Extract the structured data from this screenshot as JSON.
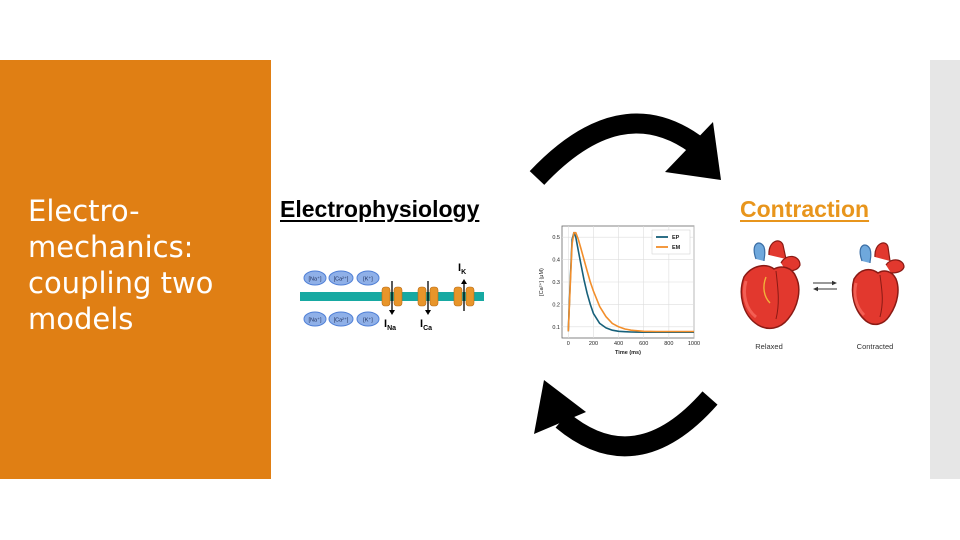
{
  "title": {
    "lines": [
      "Electro-",
      "mechanics:",
      "coupling two",
      "models"
    ]
  },
  "headings": {
    "electrophysiology": "Electrophysiology",
    "contraction": "Contraction"
  },
  "membrane": {
    "ion_top": [
      "[Na⁺]",
      "[Ca²⁺]",
      "[K⁺]"
    ],
    "ion_bottom": [
      "[Na⁺]",
      "[Ca²⁺]",
      "[K⁺]"
    ],
    "currents": {
      "na_main": "I",
      "na_sub": "Na",
      "ca_main": "I",
      "ca_sub": "Ca",
      "k_main": "I",
      "k_sub": "K"
    },
    "colors": {
      "membrane": "#17a9a2",
      "channel": "#e8952a",
      "ion": "#4f7fd6"
    }
  },
  "hearts": {
    "relaxed_label": "Relaxed",
    "contracted_label": "Contracted"
  },
  "colors": {
    "accent": "#e07f14",
    "heading_orange": "#e8951c",
    "arrow": "#000000"
  },
  "chart_data": {
    "type": "line",
    "title": "",
    "xlabel": "Time (ms)",
    "ylabel": "[Ca²⁺] (μM)",
    "xlim": [
      -50,
      1000
    ],
    "ylim": [
      0.05,
      0.55
    ],
    "xticks": [
      0,
      200,
      400,
      600,
      800,
      1000
    ],
    "yticks": [
      0.1,
      0.2,
      0.3,
      0.4,
      0.5
    ],
    "grid": true,
    "legend": "top-right",
    "series": [
      {
        "name": "EP",
        "color": "#17607a",
        "x": [
          0,
          15,
          30,
          45,
          60,
          80,
          100,
          125,
          150,
          175,
          200,
          250,
          300,
          350,
          400,
          450,
          500,
          600,
          700,
          800,
          900,
          1000
        ],
        "y": [
          0.08,
          0.3,
          0.49,
          0.52,
          0.5,
          0.44,
          0.38,
          0.31,
          0.25,
          0.2,
          0.16,
          0.115,
          0.095,
          0.085,
          0.08,
          0.078,
          0.077,
          0.076,
          0.076,
          0.076,
          0.076,
          0.076
        ]
      },
      {
        "name": "EM",
        "color": "#f28e2b",
        "x": [
          0,
          15,
          30,
          45,
          60,
          80,
          100,
          125,
          150,
          175,
          200,
          250,
          300,
          350,
          400,
          450,
          500,
          600,
          700,
          800,
          900,
          1000
        ],
        "y": [
          0.08,
          0.28,
          0.47,
          0.52,
          0.52,
          0.49,
          0.45,
          0.4,
          0.35,
          0.3,
          0.26,
          0.19,
          0.145,
          0.115,
          0.1,
          0.09,
          0.085,
          0.08,
          0.079,
          0.079,
          0.079,
          0.079
        ]
      }
    ]
  }
}
